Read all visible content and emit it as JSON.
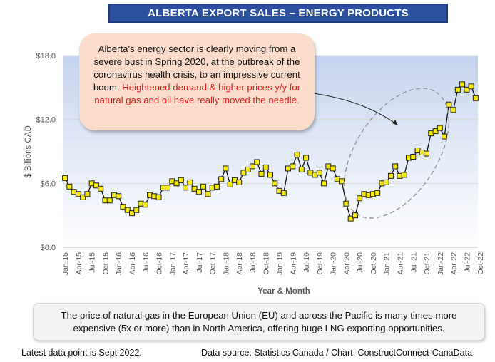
{
  "chart_data": {
    "type": "line",
    "title": "ALBERTA EXPORT SALES – ENERGY PRODUCTS",
    "ylabel": "$ Billions CAD",
    "xlabel": "Year & Month",
    "ylim": [
      0,
      18
    ],
    "yticks": [
      "$0.0",
      "$6.0",
      "$12.0",
      "$18.0"
    ],
    "ytick_values": [
      0,
      6,
      12,
      18
    ],
    "x_tick_labels": [
      "Jan-15",
      "Apr-15",
      "Jul-15",
      "Oct-15",
      "Jan-16",
      "Apr-16",
      "Jul-16",
      "Oct-16",
      "Jan-17",
      "Apr-17",
      "Jul-17",
      "Oct-17",
      "Jan-18",
      "Apr-18",
      "Jul-18",
      "Oct-18",
      "Jan-19",
      "Apr-19",
      "Jul-19",
      "Oct-19",
      "Jan-20",
      "Apr-20",
      "Jul-20",
      "Oct-20",
      "Jan-21",
      "Apr-21",
      "Jul-21",
      "Oct-21",
      "Jan-22",
      "Apr-22",
      "Jul-22",
      "Oct-22"
    ],
    "grid": true,
    "series": [
      {
        "color": "#f5ea0f",
        "values": [
          6.5,
          5.7,
          5.2,
          5.0,
          4.7,
          5.0,
          6.0,
          5.8,
          5.5,
          4.4,
          4.4,
          4.9,
          4.8,
          3.8,
          3.5,
          3.2,
          3.5,
          4.1,
          4.0,
          4.9,
          4.8,
          4.7,
          5.6,
          5.6,
          6.2,
          6.0,
          6.3,
          5.6,
          6.1,
          5.5,
          5.2,
          5.7,
          5.0,
          5.6,
          5.7,
          6.4,
          7.4,
          5.9,
          6.3,
          6.1,
          7.0,
          7.3,
          7.6,
          8.0,
          6.9,
          7.5,
          6.8,
          6.0,
          5.3,
          5.1,
          7.4,
          7.6,
          8.7,
          7.3,
          8.4,
          7.0,
          6.8,
          7.0,
          6.0,
          7.6,
          7.4,
          6.4,
          6.2,
          4.1,
          2.7,
          3.0,
          4.6,
          5.0,
          4.9,
          5.0,
          5.1,
          6.0,
          6.1,
          6.7,
          7.6,
          6.7,
          6.8,
          8.4,
          8.5,
          9.1,
          8.9,
          8.8,
          10.7,
          10.9,
          11.2,
          10.4,
          13.4,
          12.9,
          14.8,
          15.3,
          14.8,
          15.1,
          14.0
        ]
      }
    ]
  },
  "callout": {
    "text": "Alberta's energy sector is clearly moving from a severe bust in Spring 2020, at the outbreak of the coronavirus health crisis, to an impressive current boom.",
    "highlight": "Heightened demand & higher prices y/y for natural gas and oil have really moved the needle."
  },
  "note": "The price of natural gas in the European Union (EU) and across the Pacific is many times more expensive (5x or more) than in North America, offering huge LNG exporting opportunities.",
  "footer": {
    "latest": "Latest data point is Sept 2022.",
    "source": "Data source: Statistics Canada / Chart: ConstructConnect-CanaData"
  },
  "colors": {
    "banner": "#2c4f9e",
    "marker_fill": "#f5ea0f",
    "line": "#111111",
    "callout_bg": "#fbdccb",
    "highlight_text": "#e02020"
  }
}
